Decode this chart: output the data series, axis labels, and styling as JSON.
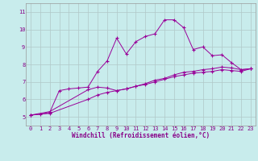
{
  "xlabel": "Windchill (Refroidissement éolien,°C)",
  "ylabel": "",
  "background_color": "#c8ecec",
  "grid_color": "#b0c8c8",
  "line_color": "#990099",
  "xlim": [
    -0.5,
    23.5
  ],
  "ylim": [
    4.5,
    11.5
  ],
  "yticks": [
    5,
    6,
    7,
    8,
    9,
    10,
    11
  ],
  "xticks": [
    0,
    1,
    2,
    3,
    4,
    5,
    6,
    7,
    8,
    9,
    10,
    11,
    12,
    13,
    14,
    15,
    16,
    17,
    18,
    19,
    20,
    21,
    22,
    23
  ],
  "line1_x": [
    0,
    1,
    2,
    3,
    4,
    5,
    6,
    7,
    8,
    9,
    10,
    11,
    12,
    13,
    14,
    15,
    16,
    17,
    18,
    19,
    20,
    21,
    22,
    23
  ],
  "line1_y": [
    5.1,
    5.15,
    5.25,
    6.5,
    6.6,
    6.65,
    6.7,
    7.6,
    8.2,
    9.5,
    8.6,
    9.3,
    9.6,
    9.75,
    10.55,
    10.55,
    10.1,
    8.85,
    9.0,
    8.5,
    8.55,
    8.1,
    7.7,
    7.75
  ],
  "line2_x": [
    0,
    2,
    6,
    7,
    8,
    9,
    10,
    11,
    12,
    13,
    14,
    15,
    16,
    17,
    18,
    19,
    20,
    21,
    22,
    23
  ],
  "line2_y": [
    5.1,
    5.3,
    6.55,
    6.7,
    6.65,
    6.5,
    6.6,
    6.75,
    6.9,
    7.1,
    7.2,
    7.4,
    7.55,
    7.6,
    7.7,
    7.75,
    7.85,
    7.8,
    7.7,
    7.75
  ],
  "line3_x": [
    0,
    2,
    6,
    7,
    8,
    9,
    10,
    11,
    12,
    13,
    14,
    15,
    16,
    17,
    18,
    19,
    20,
    21,
    22,
    23
  ],
  "line3_y": [
    5.1,
    5.2,
    6.0,
    6.25,
    6.4,
    6.5,
    6.6,
    6.75,
    6.85,
    7.0,
    7.15,
    7.3,
    7.4,
    7.5,
    7.55,
    7.6,
    7.7,
    7.65,
    7.6,
    7.75
  ],
  "tick_fontsize": 5.0,
  "xlabel_fontsize": 5.5
}
